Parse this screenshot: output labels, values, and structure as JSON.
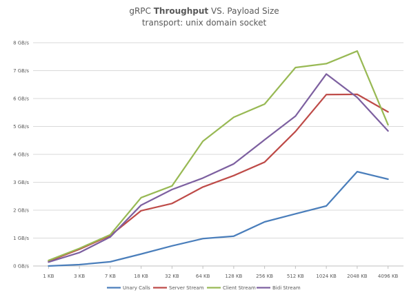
{
  "title": {
    "prefix": "gRPC ",
    "bold": "Throughput",
    "suffix": " VS. Payload Size",
    "subtitle": "transport: unix domain socket"
  },
  "chart_data": {
    "type": "line",
    "categories": [
      "1 KB",
      "3 KB",
      "7 KB",
      "18 KB",
      "32 KB",
      "64 KB",
      "128 KB",
      "256 KB",
      "512 KB",
      "1024 KB",
      "2048 KB",
      "4096 KB"
    ],
    "y_ticks": [
      "0 GB/s",
      "1 GB/s",
      "2 GB/s",
      "3 GB/s",
      "4 GB/s",
      "5 GB/s",
      "6 GB/s",
      "7 GB/s",
      "8 GB/s"
    ],
    "ylim": [
      0,
      8
    ],
    "grid": true,
    "legend_position": "bottom",
    "series": [
      {
        "name": "Unary Calls",
        "color": "#4a7ebb",
        "values": [
          0.0,
          0.05,
          0.15,
          0.43,
          0.72,
          0.98,
          1.07,
          1.58,
          1.87,
          2.15,
          3.38,
          3.11
        ]
      },
      {
        "name": "Server Stream",
        "color": "#be4b48",
        "values": [
          0.17,
          0.6,
          1.09,
          1.98,
          2.24,
          2.83,
          3.24,
          3.72,
          4.82,
          6.14,
          6.15,
          5.52
        ]
      },
      {
        "name": "Client Stream",
        "color": "#98b954",
        "values": [
          0.2,
          0.63,
          1.12,
          2.45,
          2.87,
          4.47,
          5.33,
          5.8,
          7.11,
          7.25,
          7.7,
          5.06
        ]
      },
      {
        "name": "Bidi Stream",
        "color": "#7d60a0",
        "values": [
          0.14,
          0.48,
          1.04,
          2.18,
          2.74,
          3.15,
          3.66,
          4.52,
          5.37,
          6.88,
          6.04,
          4.84
        ]
      }
    ]
  }
}
